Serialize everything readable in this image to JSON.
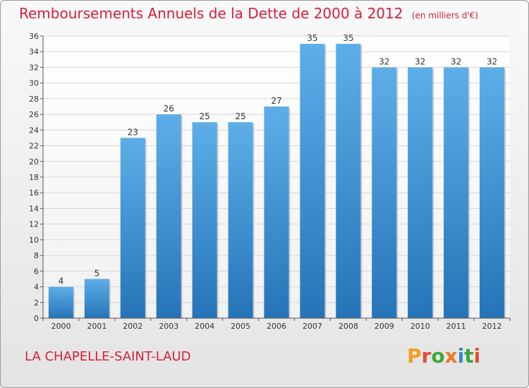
{
  "chart_data": {
    "type": "bar",
    "title": "Remboursements Annuels de la Dette de 2000 à 2012",
    "subtitle": "(en milliers d'€)",
    "categories": [
      "2000",
      "2001",
      "2002",
      "2003",
      "2004",
      "2005",
      "2006",
      "2007",
      "2008",
      "2009",
      "2010",
      "2011",
      "2012"
    ],
    "values": [
      4,
      5,
      23,
      26,
      25,
      25,
      27,
      35,
      35,
      32,
      32,
      32,
      32
    ],
    "ylim": [
      0,
      36
    ],
    "yticks": [
      0,
      2,
      4,
      6,
      8,
      10,
      12,
      14,
      16,
      18,
      20,
      22,
      24,
      26,
      28,
      30,
      32,
      34,
      36
    ],
    "grid": true,
    "xlabel": "",
    "ylabel": "",
    "bar_color": "#3d93d8",
    "title_color": "#d5203a"
  },
  "footer": {
    "commune": "LA CHAPELLE-SAINT-LAUD",
    "logo": "Proxiti"
  },
  "logo_colors": [
    "#f0a020",
    "#e54c3a",
    "#3ea63a",
    "#f07820",
    "#2b8cd8",
    "#3ea63a",
    "#e54c3a"
  ]
}
